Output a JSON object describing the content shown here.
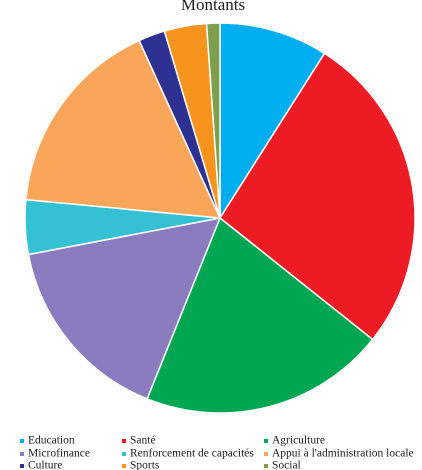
{
  "chart_data": {
    "type": "pie",
    "title": "Montants",
    "categories": [
      "Education",
      "Santé",
      "Agriculture",
      "Microfinance",
      "Renforcement de capacités",
      "Appui à l'administration locale",
      "Culture",
      "Sports",
      "Social"
    ],
    "values": [
      9,
      26.7,
      20.4,
      15.9,
      4.5,
      16.7,
      2.2,
      3.5,
      1.1
    ],
    "colors": [
      "#00aeef",
      "#ed1c24",
      "#00a651",
      "#8b7bbf",
      "#33c1d3",
      "#f9a65a",
      "#2e3192",
      "#f7941d",
      "#7ea04d"
    ],
    "legend": "bottom"
  }
}
